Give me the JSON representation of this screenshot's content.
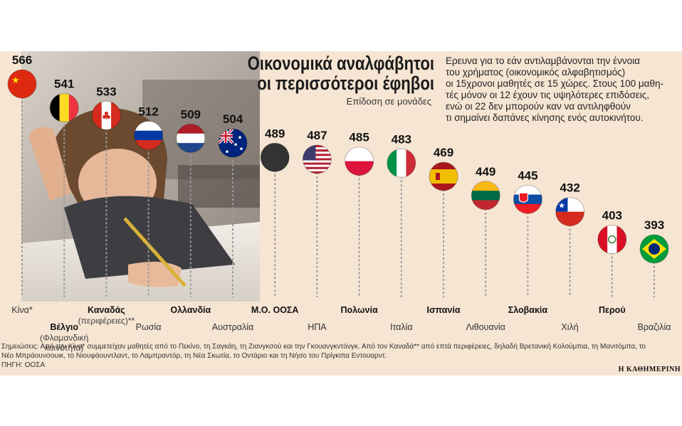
{
  "title_lines": [
    "Οικονομικά αναλφάβητοι",
    "οι περισσότεροι έφηβοι"
  ],
  "subtitle": "Επίδοση σε μονάδες",
  "intro_lines": [
    "Ερευνα για το εάν αντιλαμβάνονται την έννοια",
    "του χρήματος (οικονομικός αλφαβητισμός)",
    "οι 15χρονοι μαθητές σε 15 χώρες. Στους 100 μαθη-",
    "τές μόνον οι 12 έχουν τις υψηλότερες επιδόσεις,",
    "ενώ οι 22 δεν μπορούν καν να αντιληφθούν",
    "τι σημαίνει δαπάνες κίνησης ενός αυτοκινήτου."
  ],
  "notes_lines": [
    "Σημειώσεις: Από την Κίνα* συμμετείχαν μαθητές από το Πεκίνο, τη Σαγκάη, τη Ζιανγκσού και την Γκουανγκντόνγκ. Από τον Καναδά** από επτά περιφέρειες, δηλαδή Βρετανική Κολούμπια, τη Μανιτόμπα, το",
    "Νέο Μπράουνσουικ, το Νιουφάουντλαντ, το Λαμπραντόρ, τη Νέα Σκωτία, το Οντάριο και τη Νήσο του Πρίγκιπα Εντουαρντ.",
    "ΠΗΓΗ: ΟΟΣΑ"
  ],
  "brand": "Η ΚΑΘΗΜΕΡΙΝΗ",
  "colors": {
    "background": "#f6e5d3",
    "stem": "#9a9a9a",
    "text": "#111111"
  },
  "chart_data": {
    "type": "lollipop",
    "title": "Οικονομικά αναλφάβητοι οι περισσότεροι έφηβοι",
    "subtitle": "Επίδοση σε μονάδες",
    "categories": [
      {
        "name": "Κίνα*",
        "sub": "",
        "value": 566,
        "flag": "china",
        "bold": false
      },
      {
        "name": "Βέλγιο",
        "sub": "(Φλαμανδική κοινότητα)",
        "value": 541,
        "flag": "belgium",
        "bold": true
      },
      {
        "name": "Καναδάς",
        "sub": "(περιφέρειες)**",
        "value": 533,
        "flag": "canada",
        "bold": true
      },
      {
        "name": "Ρωσία",
        "sub": "",
        "value": 512,
        "flag": "russia",
        "bold": false
      },
      {
        "name": "Ολλανδία",
        "sub": "",
        "value": 509,
        "flag": "netherlands",
        "bold": true
      },
      {
        "name": "Αυστραλία",
        "sub": "",
        "value": 504,
        "flag": "australia",
        "bold": false
      },
      {
        "name": "Μ.Ο. ΟΟΣΑ",
        "sub": "",
        "value": 489,
        "flag": "oecd-average",
        "bold": true
      },
      {
        "name": "ΗΠΑ",
        "sub": "",
        "value": 487,
        "flag": "usa",
        "bold": false
      },
      {
        "name": "Πολωνία",
        "sub": "",
        "value": 485,
        "flag": "poland",
        "bold": true
      },
      {
        "name": "Ιταλία",
        "sub": "",
        "value": 483,
        "flag": "italy",
        "bold": false
      },
      {
        "name": "Ισπανία",
        "sub": "",
        "value": 469,
        "flag": "spain",
        "bold": true
      },
      {
        "name": "Λιθουανία",
        "sub": "",
        "value": 449,
        "flag": "lithuania",
        "bold": false
      },
      {
        "name": "Σλοβακία",
        "sub": "",
        "value": 445,
        "flag": "slovakia",
        "bold": true
      },
      {
        "name": "Χιλή",
        "sub": "",
        "value": 432,
        "flag": "chile",
        "bold": false
      },
      {
        "name": "Περού",
        "sub": "",
        "value": 403,
        "flag": "peru",
        "bold": true
      },
      {
        "name": "Βραζιλία",
        "sub": "",
        "value": 393,
        "flag": "brazil",
        "bold": false
      }
    ],
    "ylim": [
      393,
      566
    ],
    "grid": false
  }
}
